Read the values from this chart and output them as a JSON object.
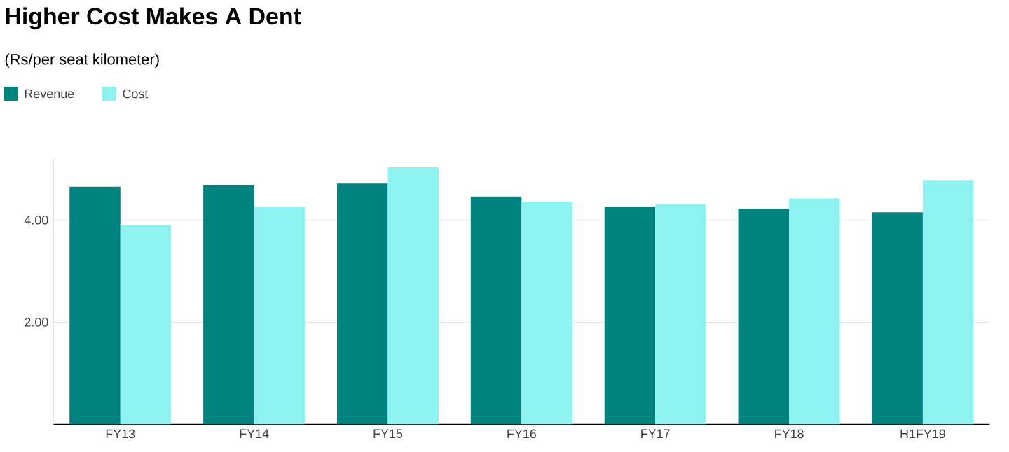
{
  "chart_data": {
    "type": "bar",
    "title": "Higher Cost Makes A Dent",
    "subtitle": "(Rs/per seat kilometer)",
    "categories": [
      "FY13",
      "FY14",
      "FY15",
      "FY16",
      "FY17",
      "FY18",
      "H1FY19"
    ],
    "series": [
      {
        "name": "Revenue",
        "color": "#00827f",
        "values": [
          4.65,
          4.68,
          4.71,
          4.46,
          4.25,
          4.22,
          4.15
        ]
      },
      {
        "name": "Cost",
        "color": "#8ef2f0",
        "values": [
          3.9,
          4.25,
          5.03,
          4.36,
          4.31,
          4.42,
          4.78
        ]
      }
    ],
    "ylim": [
      0,
      5.2
    ],
    "yticks": [
      {
        "value": 0,
        "label": null
      },
      {
        "value": 2,
        "label": "2.00"
      },
      {
        "value": 4,
        "label": "4.00"
      }
    ],
    "grid": "y",
    "legend": "top left"
  }
}
